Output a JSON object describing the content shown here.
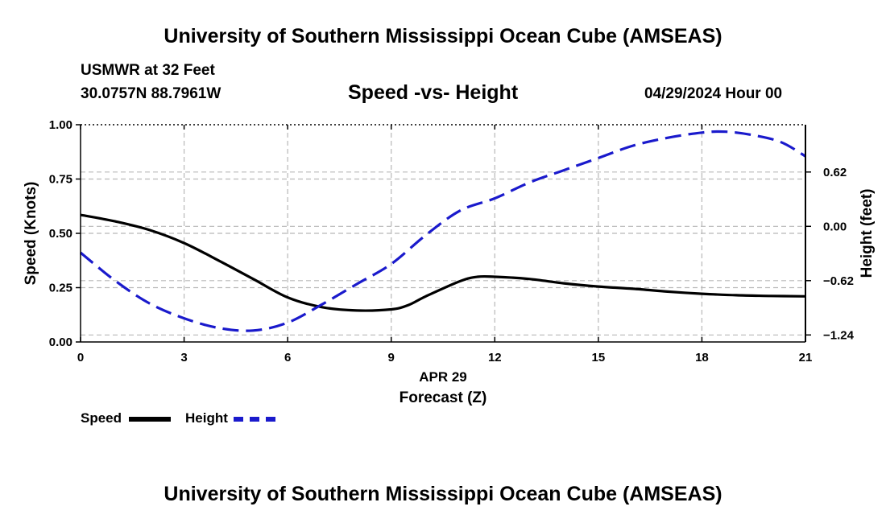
{
  "header": {
    "title": "University of Southern Mississippi Ocean Cube (AMSEAS)",
    "station": "USMWR at 32 Feet",
    "coords": "30.0757N  88.7961W",
    "subtitle": "Speed -vs- Height",
    "datetime": "04/29/2024 Hour 00"
  },
  "footer": {
    "title": "University of Southern Mississippi Ocean Cube (AMSEAS)"
  },
  "legend": {
    "speed_label": "Speed",
    "height_label": "Height"
  },
  "colors": {
    "speed": "#000000",
    "height": "#1a1acc",
    "grid": "#b8b8b8"
  },
  "chart_data": {
    "type": "line",
    "title": "Speed -vs- Height",
    "xlabel": "Forecast (Z)",
    "xsublabel": "APR 29",
    "ylabel": "Speed (Knots)",
    "y2label": "Height (feet)",
    "xlim": [
      0,
      21
    ],
    "ylim": [
      0,
      1
    ],
    "y2lim": [
      -1.32,
      1.16
    ],
    "x_ticks": [
      0,
      3,
      6,
      9,
      12,
      15,
      18,
      21
    ],
    "x_tick_labels": [
      "0",
      "3",
      "6",
      "9",
      "12",
      "15",
      "18",
      "21"
    ],
    "y_ticks": [
      0,
      0.25,
      0.5,
      0.75,
      1.0
    ],
    "y_tick_labels": [
      "0.00",
      "0.25",
      "0.50",
      "0.75",
      "1.00"
    ],
    "y2_ticks": [
      -1.24,
      -0.62,
      0.0,
      0.62
    ],
    "y2_tick_labels": [
      "−1.24",
      "−0.62",
      "0.00",
      "0.62"
    ],
    "grid": true,
    "series": [
      {
        "name": "Speed",
        "axis": "left",
        "style": "solid",
        "x": [
          0,
          1,
          2,
          3,
          4,
          5,
          6,
          7,
          8,
          9,
          9.5,
          10,
          11,
          11.5,
          12,
          13,
          14,
          15,
          16,
          17,
          18,
          19,
          20,
          21
        ],
        "values": [
          0.585,
          0.555,
          0.515,
          0.455,
          0.375,
          0.29,
          0.205,
          0.16,
          0.145,
          0.15,
          0.17,
          0.21,
          0.28,
          0.3,
          0.3,
          0.29,
          0.27,
          0.255,
          0.245,
          0.232,
          0.222,
          0.215,
          0.212,
          0.21
        ]
      },
      {
        "name": "Height",
        "axis": "right",
        "style": "dashed",
        "x": [
          0,
          1,
          2,
          3,
          4,
          5,
          6,
          7,
          8,
          9,
          10,
          11,
          12,
          13,
          14,
          15,
          16,
          17,
          18,
          18.7,
          19.5,
          20.3,
          21
        ],
        "values": [
          -0.3,
          -0.62,
          -0.88,
          -1.05,
          -1.16,
          -1.19,
          -1.1,
          -0.89,
          -0.66,
          -0.43,
          -0.1,
          0.18,
          0.32,
          0.5,
          0.64,
          0.78,
          0.92,
          1.01,
          1.07,
          1.08,
          1.04,
          0.96,
          0.8
        ]
      }
    ]
  }
}
